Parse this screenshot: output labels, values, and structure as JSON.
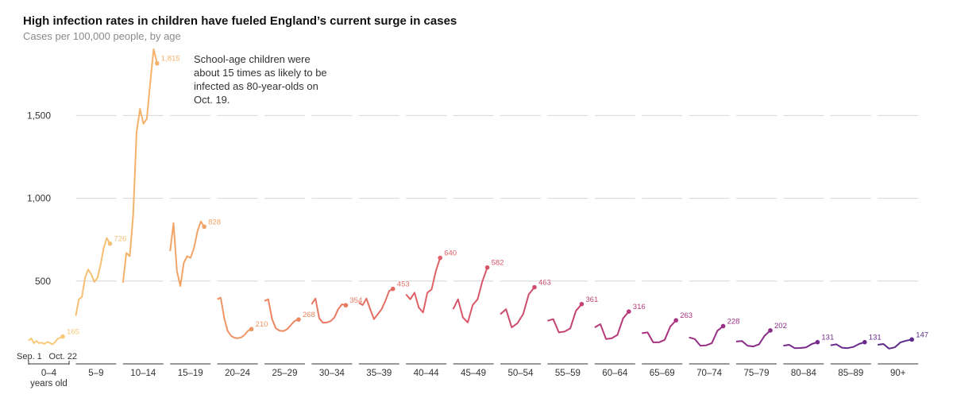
{
  "title": "High infection rates in children have fueled England’s current surge in cases",
  "subtitle": "Cases per 100,000 people, by age",
  "annotation": "School-age children were about 15 times as likely to be infected as 80-year-olds on Oct. 19.",
  "colors": {
    "grid": "#d6d6d6",
    "axis_text": "#333333",
    "series": [
      "#f7c978",
      "#f6bf72",
      "#f4b26a",
      "#f2a366",
      "#ef9564",
      "#ec8762",
      "#e97a62",
      "#e46e64",
      "#df6167",
      "#d8566b",
      "#ce4c6f",
      "#c34374",
      "#b63b7a",
      "#a8347f",
      "#983085",
      "#882c88",
      "#782a8a",
      "#6a2a8a",
      "#5c2a88"
    ]
  },
  "chart_data": {
    "type": "line",
    "ylim": [
      0,
      1900
    ],
    "yticks": [
      500,
      1000,
      1500
    ],
    "ytick_labels": [
      "500",
      "1,000",
      "1,500"
    ],
    "grid": true,
    "x_range": [
      "Sep. 1",
      "Oct. 22"
    ],
    "x_start_label": "Sep. 1",
    "x_end_label": "Oct. 22",
    "group_label_first_sub": "years old",
    "series": [
      {
        "name": "0–4",
        "end_label": "165",
        "values": [
          140,
          155,
          125,
          138,
          125,
          128,
          120,
          132,
          128,
          118,
          130,
          150,
          158,
          165
        ]
      },
      {
        "name": "5–9",
        "end_label": "726",
        "values": [
          290,
          390,
          405,
          520,
          570,
          540,
          495,
          520,
          600,
          700,
          760,
          726
        ]
      },
      {
        "name": "10–14",
        "end_label": "1,815",
        "values": [
          490,
          670,
          650,
          900,
          1400,
          1540,
          1450,
          1480,
          1700,
          1900,
          1815
        ]
      },
      {
        "name": "15–19",
        "end_label": "828",
        "values": [
          680,
          850,
          560,
          470,
          610,
          650,
          640,
          700,
          800,
          860,
          828
        ]
      },
      {
        "name": "20–24",
        "end_label": "210",
        "values": [
          390,
          400,
          280,
          200,
          170,
          158,
          155,
          160,
          175,
          200,
          210
        ]
      },
      {
        "name": "25–29",
        "end_label": "268",
        "values": [
          380,
          390,
          270,
          215,
          200,
          198,
          210,
          235,
          260,
          268
        ]
      },
      {
        "name": "30–34",
        "end_label": "354",
        "values": [
          360,
          395,
          275,
          248,
          250,
          258,
          280,
          330,
          360,
          354
        ]
      },
      {
        "name": "35–39",
        "end_label": "453",
        "values": [
          370,
          355,
          395,
          330,
          270,
          300,
          330,
          380,
          440,
          453
        ]
      },
      {
        "name": "40–44",
        "end_label": "640",
        "values": [
          420,
          390,
          430,
          340,
          310,
          430,
          450,
          560,
          640
        ]
      },
      {
        "name": "45–49",
        "end_label": "582",
        "values": [
          330,
          390,
          280,
          250,
          355,
          390,
          500,
          582
        ]
      },
      {
        "name": "50–54",
        "end_label": "463",
        "values": [
          300,
          330,
          220,
          245,
          300,
          420,
          463
        ]
      },
      {
        "name": "55–59",
        "end_label": "361",
        "values": [
          260,
          270,
          190,
          195,
          215,
          320,
          361
        ]
      },
      {
        "name": "60–64",
        "end_label": "316",
        "values": [
          220,
          240,
          150,
          155,
          175,
          275,
          316
        ]
      },
      {
        "name": "65–69",
        "end_label": "263",
        "values": [
          185,
          190,
          130,
          130,
          145,
          225,
          263
        ]
      },
      {
        "name": "70–74",
        "end_label": "228",
        "values": [
          160,
          150,
          110,
          112,
          125,
          200,
          228
        ]
      },
      {
        "name": "75–79",
        "end_label": "202",
        "values": [
          135,
          138,
          110,
          105,
          118,
          170,
          202
        ]
      },
      {
        "name": "80–84",
        "end_label": "131",
        "values": [
          110,
          115,
          95,
          96,
          100,
          120,
          131
        ]
      },
      {
        "name": "85–89",
        "end_label": "131",
        "values": [
          112,
          118,
          98,
          95,
          102,
          120,
          131
        ]
      },
      {
        "name": "90+",
        "end_label": "147",
        "values": [
          115,
          120,
          92,
          100,
          130,
          140,
          147
        ]
      }
    ]
  }
}
